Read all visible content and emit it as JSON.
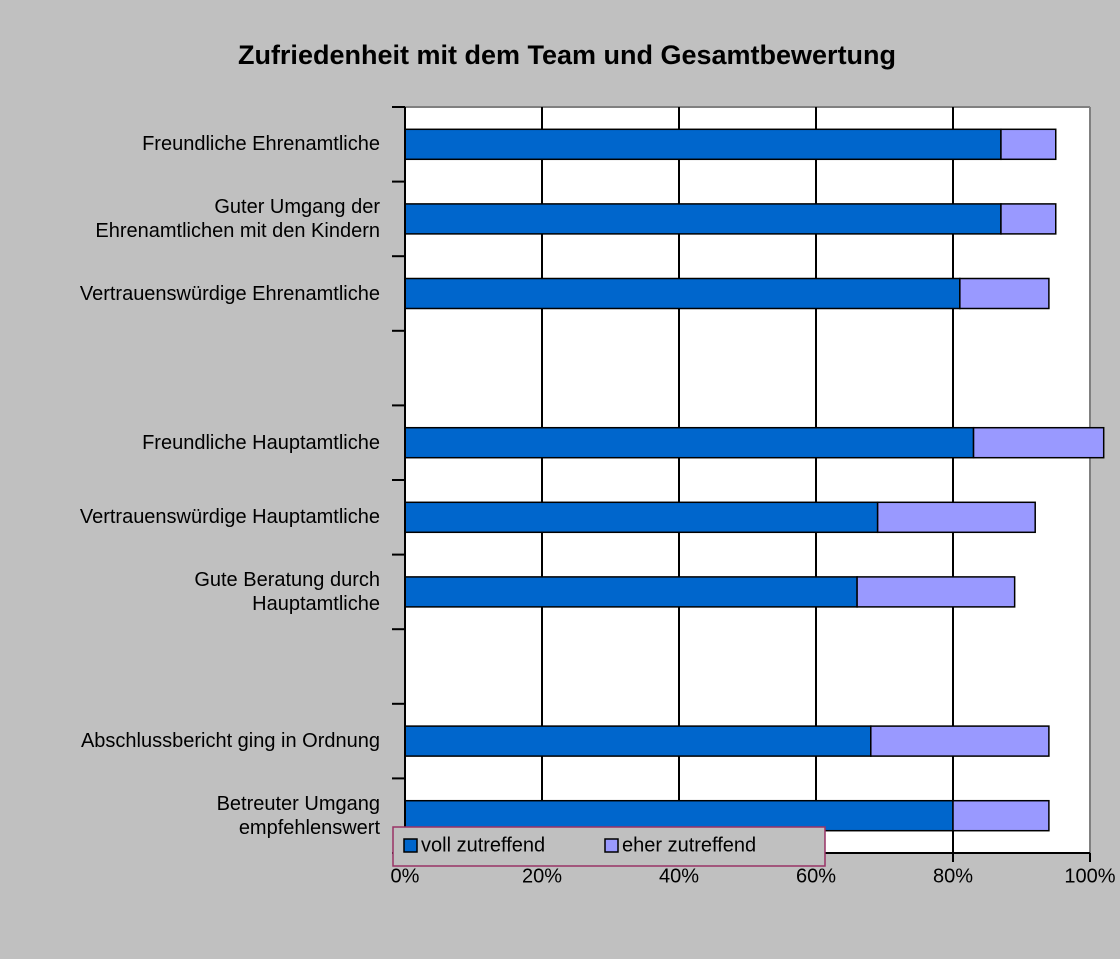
{
  "chart_data": {
    "type": "stacked_barh",
    "title": "Zufriedenheit mit dem Team und Gesamtbewertung",
    "categories": [
      "Freundliche Ehrenamtliche",
      "Guter Umgang der\nEhrenamtlichen mit den Kindern",
      "Vertrauenswürdige Ehrenamtliche",
      null,
      "Freundliche Hauptamtliche",
      "Vertrauenswürdige Hauptamtliche",
      "Gute Beratung durch\nHauptamtliche",
      null,
      "Abschlussbericht ging in Ordnung",
      "Betreuter Umgang\nempfehlenswert"
    ],
    "series": [
      {
        "name": "voll zutreffend",
        "color": "#0066cc",
        "values": [
          87,
          87,
          81,
          null,
          83,
          69,
          66,
          null,
          68,
          80
        ]
      },
      {
        "name": "eher zutreffend",
        "color": "#9999ff",
        "values": [
          8,
          8,
          13,
          null,
          19,
          23,
          23,
          null,
          26,
          14
        ]
      }
    ],
    "xlim": [
      0,
      100
    ],
    "xticks": [
      {
        "value": 0,
        "label": "0%"
      },
      {
        "value": 20,
        "label": "20%"
      },
      {
        "value": 40,
        "label": "40%"
      },
      {
        "value": 60,
        "label": "60%"
      },
      {
        "value": 80,
        "label": "80%"
      },
      {
        "value": 100,
        "label": "100%"
      }
    ],
    "grid": true
  }
}
